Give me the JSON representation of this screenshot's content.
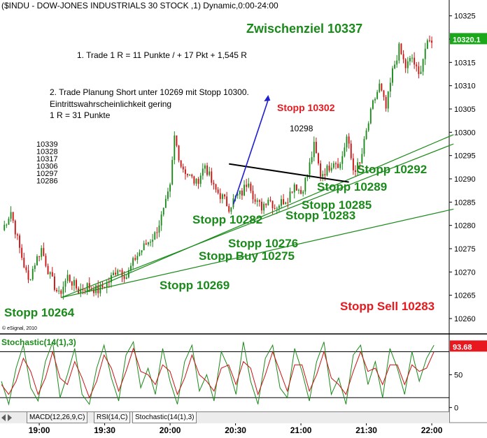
{
  "header": {
    "title": "($INDU - DOW-JONES INDUSTRIALS 30 STOCK ,1) Dynamic,0:00-24:00"
  },
  "watermark": "© eSignal, 2010",
  "colors": {
    "green_text": "#1a8a1a",
    "red_text": "#e8191e",
    "candle_up": "#1a8a1a",
    "candle_down": "#cc1111",
    "trendline": "#1a8a1a",
    "arrow": "#1f1fcf",
    "last_price_box": "#1aa81a",
    "stoch_box": "#e8191e"
  },
  "chart_data": [
    {
      "type": "candlestick",
      "title": "($INDU - DOW-JONES INDUSTRIALS 30 STOCK ,1) Dynamic,0:00-24:00",
      "x_ticks": [
        "19:00",
        "19:30",
        "20:00",
        "20:30",
        "21:00",
        "21:30",
        "22:00"
      ],
      "y_ticks": [
        10260,
        10265,
        10270,
        10275,
        10280,
        10285,
        10290,
        10295,
        10300,
        10305,
        10310,
        10315,
        10320,
        10325
      ],
      "ylim": [
        10257,
        10326
      ],
      "last_price": "10320.1",
      "close_path": [
        [
          "18:43",
          10279
        ],
        [
          "18:47",
          10283
        ],
        [
          "18:51",
          10275
        ],
        [
          "18:55",
          10268
        ],
        [
          "18:58",
          10272
        ],
        [
          "19:01",
          10275
        ],
        [
          "19:05",
          10269
        ],
        [
          "19:09",
          10265
        ],
        [
          "19:13",
          10269
        ],
        [
          "19:18",
          10266
        ],
        [
          "19:22",
          10267
        ],
        [
          "19:27",
          10266
        ],
        [
          "19:32",
          10268
        ],
        [
          "19:36",
          10271
        ],
        [
          "19:40",
          10269
        ],
        [
          "19:44",
          10273
        ],
        [
          "19:49",
          10276
        ],
        [
          "19:53",
          10278
        ],
        [
          "19:57",
          10283
        ],
        [
          "20:00",
          10288
        ],
        [
          "20:02",
          10299
        ],
        [
          "20:05",
          10293
        ],
        [
          "20:08",
          10291
        ],
        [
          "20:12",
          10289
        ],
        [
          "20:16",
          10293
        ],
        [
          "20:20",
          10288
        ],
        [
          "20:24",
          10286
        ],
        [
          "20:27",
          10284
        ],
        [
          "20:30",
          10286
        ],
        [
          "20:33",
          10287
        ],
        [
          "20:36",
          10290
        ],
        [
          "20:39",
          10285
        ],
        [
          "20:42",
          10284
        ],
        [
          "20:45",
          10286
        ],
        [
          "20:48",
          10284
        ],
        [
          "20:51",
          10285
        ],
        [
          "20:54",
          10286
        ],
        [
          "20:57",
          10289
        ],
        [
          "21:00",
          10287
        ],
        [
          "21:03",
          10291
        ],
        [
          "21:06",
          10297
        ],
        [
          "21:09",
          10291
        ],
        [
          "21:12",
          10292
        ],
        [
          "21:15",
          10294
        ],
        [
          "21:18",
          10293
        ],
        [
          "21:21",
          10299
        ],
        [
          "21:24",
          10292
        ],
        [
          "21:27",
          10293
        ],
        [
          "21:30",
          10300
        ],
        [
          "21:33",
          10306
        ],
        [
          "21:36",
          10310
        ],
        [
          "21:39",
          10305
        ],
        [
          "21:42",
          10313
        ],
        [
          "21:45",
          10318
        ],
        [
          "21:48",
          10314
        ],
        [
          "21:51",
          10316
        ],
        [
          "21:54",
          10312
        ],
        [
          "21:57",
          10318
        ],
        [
          "22:00",
          10320
        ]
      ],
      "price_list": [
        "10339",
        "10328",
        "10317",
        "10306",
        "10297",
        "10286"
      ],
      "annotations": [
        {
          "text": "Zwischenziel 10337",
          "color": "green",
          "size": "large"
        },
        {
          "text": "1. Trade 1 R = 11 Punkte / + 17 Pkt + 1,545 R",
          "color": "black",
          "size": "small"
        },
        {
          "text": "2. Trade Planung Short unter 10269 mit Stopp 10300.",
          "color": "black",
          "size": "small"
        },
        {
          "text": "Eintrittswahrscheinlichkeit gering",
          "color": "black",
          "size": "small"
        },
        {
          "text": "1 R = 31 Punkte",
          "color": "black",
          "size": "small"
        },
        {
          "text": "Stopp 10302",
          "color": "red",
          "size": "medium"
        },
        {
          "text": "10298",
          "color": "black",
          "size": "small"
        },
        {
          "text": "Stopp 10292",
          "color": "green",
          "size": "large"
        },
        {
          "text": "Stopp 10289",
          "color": "green",
          "size": "large"
        },
        {
          "text": "Stopp 10285",
          "color": "green",
          "size": "large"
        },
        {
          "text": "Stopp 10283",
          "color": "green",
          "size": "large"
        },
        {
          "text": "Stopp 10282",
          "color": "green",
          "size": "large"
        },
        {
          "text": "Stopp 10276",
          "color": "green",
          "size": "large"
        },
        {
          "text": "Stopp Buy 10275",
          "color": "green",
          "size": "large"
        },
        {
          "text": "Stopp 10269",
          "color": "green",
          "size": "large"
        },
        {
          "text": "Stopp 10264",
          "color": "green",
          "size": "large"
        },
        {
          "text": "Stopp Sell 10283",
          "color": "red",
          "size": "large"
        }
      ]
    },
    {
      "type": "line",
      "title": "Stochastic(14(1),3)",
      "y_ticks": [
        0,
        50
      ],
      "reference_lines": [
        15,
        85
      ],
      "ylim": [
        -6,
        110
      ],
      "last_value": "93.68",
      "series": [
        {
          "color": "green",
          "values": [
            40,
            5,
            60,
            95,
            30,
            10,
            70,
            100,
            15,
            50,
            90,
            20,
            5,
            60,
            95,
            45,
            10,
            80,
            100,
            30,
            60,
            20,
            90,
            40,
            5,
            70,
            95,
            25,
            50,
            10,
            85,
            60,
            20,
            100,
            40,
            5,
            75,
            95,
            30,
            15,
            90,
            55,
            10,
            70,
            100,
            20,
            45,
            5,
            80,
            95,
            35,
            70,
            15,
            90,
            60,
            20,
            85,
            40,
            75,
            95
          ]
        },
        {
          "color": "red",
          "values": [
            35,
            20,
            40,
            75,
            55,
            20,
            45,
            85,
            45,
            35,
            70,
            45,
            15,
            40,
            80,
            60,
            25,
            55,
            90,
            55,
            50,
            35,
            65,
            55,
            20,
            45,
            80,
            50,
            40,
            25,
            60,
            65,
            35,
            70,
            60,
            20,
            50,
            85,
            55,
            25,
            65,
            65,
            25,
            50,
            85,
            45,
            35,
            20,
            55,
            85,
            55,
            60,
            35,
            65,
            65,
            35,
            65,
            55,
            60,
            85
          ]
        }
      ]
    }
  ],
  "tabs": [
    {
      "label": "MACD(12,26,9,C)"
    },
    {
      "label": "RSI(14,C)"
    },
    {
      "label": "Stochastic(14(1),3)"
    }
  ]
}
